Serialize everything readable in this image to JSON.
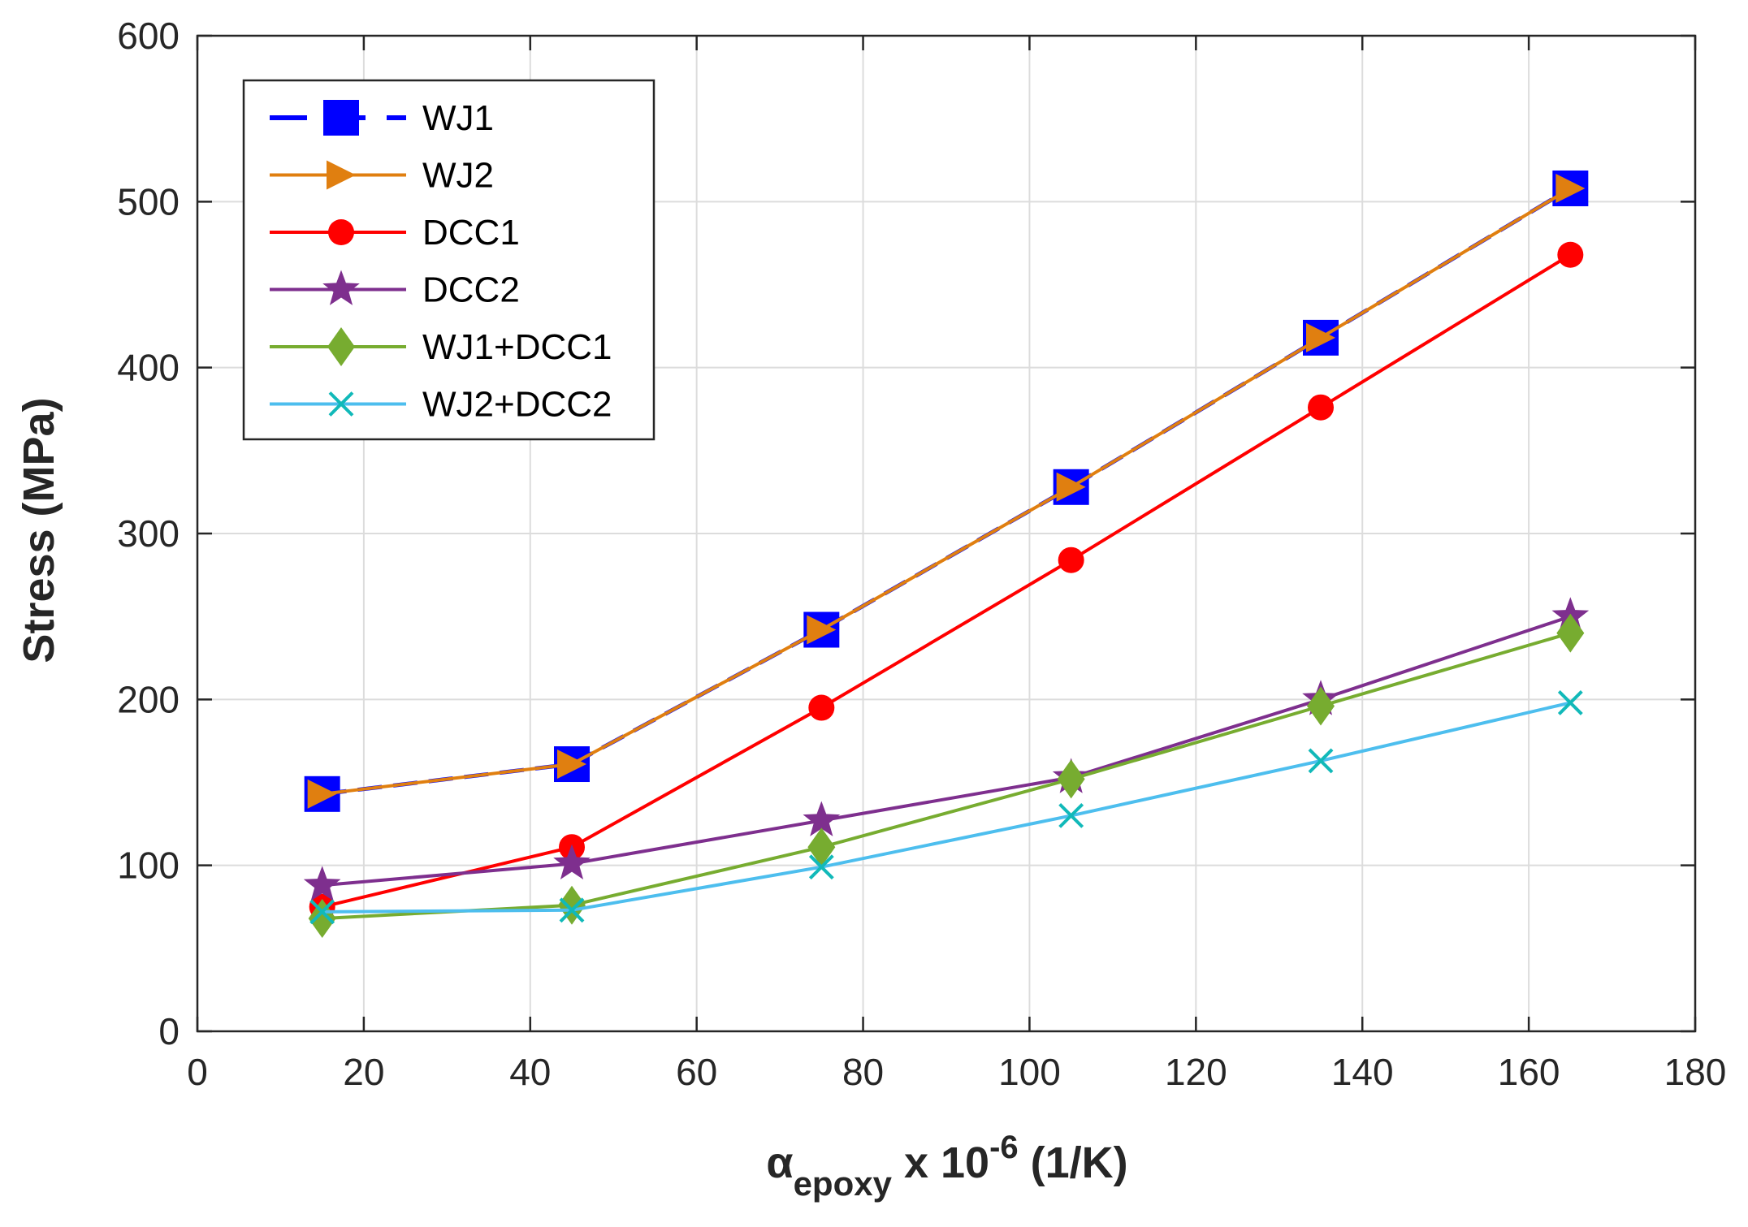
{
  "chart_data": {
    "type": "line",
    "title": "",
    "xlabel": {
      "base": "α",
      "subscript": "epoxy",
      "middle": " x 10",
      "superscript": "-6",
      "suffix": " (1/K)"
    },
    "ylabel": "Stress (MPa)",
    "xlim": [
      0,
      180
    ],
    "ylim": [
      0,
      600
    ],
    "xticks": [
      0,
      20,
      40,
      60,
      80,
      100,
      120,
      140,
      160,
      180
    ],
    "yticks": [
      0,
      100,
      200,
      300,
      400,
      500,
      600
    ],
    "grid": true,
    "legend_position": "top-left",
    "x": [
      15,
      45,
      75,
      105,
      135,
      165
    ],
    "series": [
      {
        "name": "WJ1",
        "values": [
          143,
          161,
          242,
          328,
          418,
          508
        ],
        "color": "#0000ff",
        "marker": "square",
        "dash": "dashed"
      },
      {
        "name": "WJ2",
        "values": [
          143,
          161,
          242,
          328,
          418,
          508
        ],
        "color": "#e07f10",
        "marker": "triangle-right",
        "dash": "solid"
      },
      {
        "name": "DCC1",
        "values": [
          75,
          111,
          195,
          284,
          376,
          468
        ],
        "color": "#ff0000",
        "marker": "circle",
        "dash": "solid"
      },
      {
        "name": "DCC2",
        "values": [
          88,
          101,
          127,
          153,
          200,
          250
        ],
        "color": "#7e2f8e",
        "marker": "star",
        "dash": "solid"
      },
      {
        "name": "WJ1+DCC1",
        "values": [
          68,
          76,
          111,
          152,
          196,
          240
        ],
        "color": "#77ac30",
        "marker": "diamond",
        "dash": "solid"
      },
      {
        "name": "WJ2+DCC2",
        "values": [
          72,
          73,
          99,
          130,
          163,
          198
        ],
        "color": "#4dbeee",
        "marker": "x",
        "markerColor": "#11b9b9",
        "dash": "solid"
      }
    ]
  }
}
